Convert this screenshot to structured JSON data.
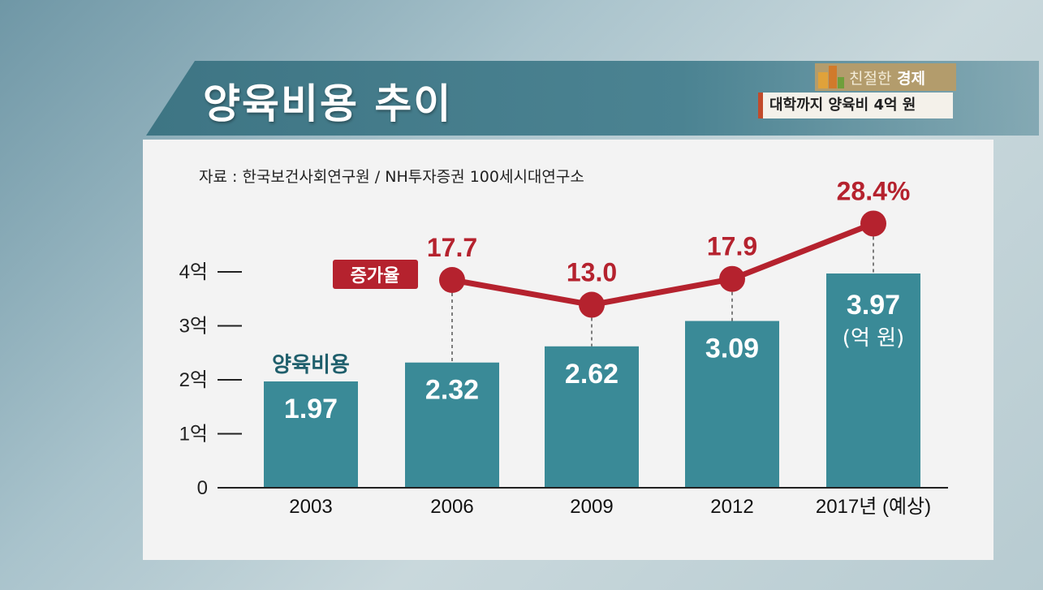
{
  "title": "양육비용 추이",
  "brand": {
    "prefix": "친절한",
    "suffix": "경제"
  },
  "subtitle": "대학까지 양육비 4억 원",
  "source": "자료 : 한국보건사회연구원 / NH투자증권 100세시대연구소",
  "colors": {
    "bar": "#3a8a97",
    "line": "#b5222e",
    "band": "#3e7584"
  },
  "chart_data": {
    "type": "bar",
    "categories": [
      "2003",
      "2006",
      "2009",
      "2012",
      "2017년 (예상)"
    ],
    "series": [
      {
        "name": "양육비용",
        "values": [
          1.97,
          2.32,
          2.62,
          3.09,
          3.97
        ],
        "labels": [
          "1.97",
          "2.32",
          "2.62",
          "3.09",
          "3.97"
        ]
      },
      {
        "name": "증가율",
        "type": "line",
        "values": [
          null,
          17.7,
          13.0,
          17.9,
          28.4
        ],
        "labels": [
          "",
          "17.7",
          "13.0",
          "17.9",
          "28.4%"
        ]
      }
    ],
    "unit_note": "(억 원)",
    "yticks": [
      "0",
      "1억",
      "2억",
      "3억",
      "4억"
    ],
    "ylim": [
      0,
      4
    ],
    "grid": false
  }
}
